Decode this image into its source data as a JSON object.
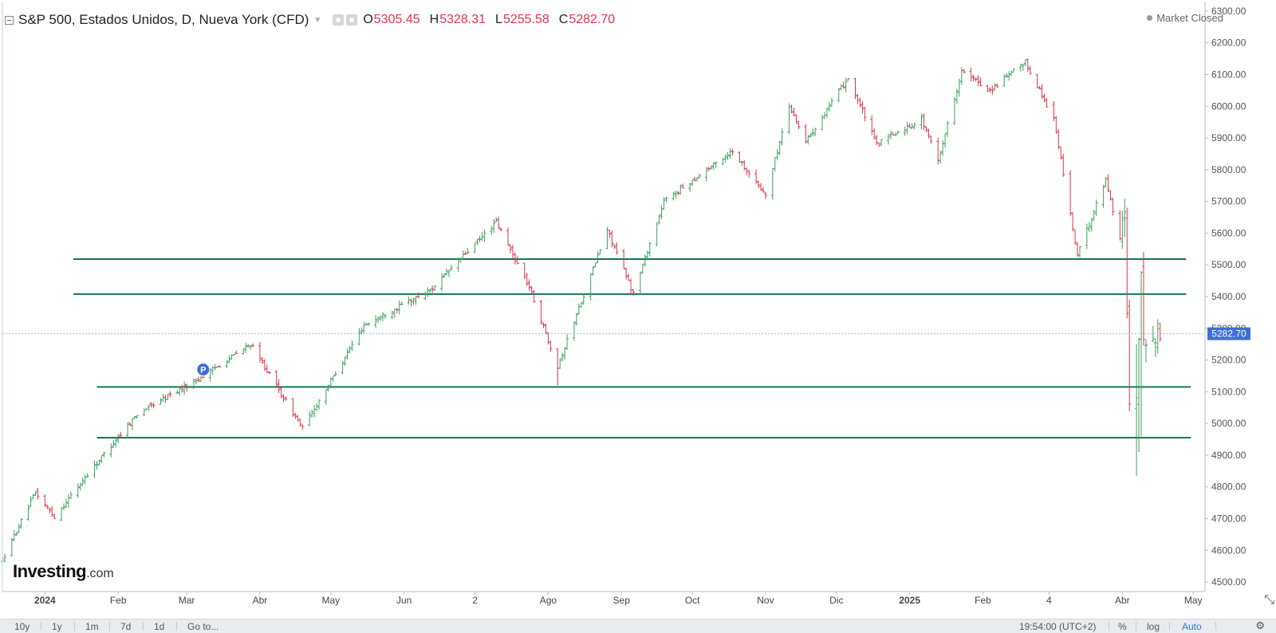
{
  "header": {
    "symbol": "S&P 500, Estados Unidos, D, Nueva York (CFD)",
    "open_label": "O",
    "open_value": "5305.45",
    "high_label": "H",
    "high_value": "5328.31",
    "low_label": "L",
    "low_value": "5255.58",
    "close_label": "C",
    "close_value": "5282.70",
    "market_status": "Market Closed"
  },
  "logo": {
    "name": "Investing",
    "suffix": ".com"
  },
  "current_price": {
    "label": "5282.70",
    "value": 5282.7
  },
  "colors": {
    "up": "#3aa05c",
    "down": "#e0344a",
    "support_line": "#0f7a55",
    "price_tag": "#3d6fd6",
    "crosshair": "#a4b6ee"
  },
  "marker": {
    "label": "P",
    "date": "2024-03-08",
    "value": 5170
  },
  "bottom_bar": {
    "ranges": [
      "10y",
      "1y",
      "1m",
      "7d",
      "1d"
    ],
    "goto": "Go to...",
    "time": "19:54:00 (UTC+2)",
    "percent": "%",
    "log": "log",
    "auto": "Auto"
  },
  "chart_data": {
    "type": "ohlc",
    "y_range": [
      4470,
      6330
    ],
    "x_range": [
      "2023-12-14",
      "2025-05-06"
    ],
    "y_tick_labels": [
      "4500.00",
      "4600.00",
      "4700.00",
      "4800.00",
      "4900.00",
      "5000.00",
      "5100.00",
      "5200.00",
      "5300.00",
      "5400.00",
      "5500.00",
      "5600.00",
      "5700.00",
      "5800.00",
      "5900.00",
      "6000.00",
      "6100.00",
      "6200.00",
      "6300.00"
    ],
    "x_ticks": [
      {
        "label": "2024",
        "date": "2024-01-01",
        "bold": true
      },
      {
        "label": "Feb",
        "date": "2024-02-01"
      },
      {
        "label": "Mar",
        "date": "2024-03-01"
      },
      {
        "label": "Abr",
        "date": "2024-04-01"
      },
      {
        "label": "May",
        "date": "2024-05-01"
      },
      {
        "label": "Jun",
        "date": "2024-06-01"
      },
      {
        "label": "2",
        "date": "2024-07-01"
      },
      {
        "label": "Ago",
        "date": "2024-08-01"
      },
      {
        "label": "Sep",
        "date": "2024-09-01"
      },
      {
        "label": "Oct",
        "date": "2024-10-01"
      },
      {
        "label": "Nov",
        "date": "2024-11-01"
      },
      {
        "label": "Dic",
        "date": "2024-12-01"
      },
      {
        "label": "2025",
        "date": "2025-01-01",
        "bold": true
      },
      {
        "label": "Feb",
        "date": "2025-02-01"
      },
      {
        "label": "4",
        "date": "2025-03-01"
      },
      {
        "label": "Abr",
        "date": "2025-04-01"
      },
      {
        "label": "May",
        "date": "2025-05-01"
      }
    ],
    "horizontal_lines": [
      {
        "start": "2024-01-13",
        "end": "2025-04-28",
        "y": 5518
      },
      {
        "start": "2024-01-13",
        "end": "2025-04-28",
        "y": 5408
      },
      {
        "start": "2024-01-23",
        "end": "2025-04-30",
        "y": 5115
      },
      {
        "start": "2024-01-23",
        "end": "2025-04-30",
        "y": 4955
      }
    ],
    "anchors": [
      [
        "2023-12-14",
        4570
      ],
      [
        "2023-12-28",
        4782
      ],
      [
        "2024-01-05",
        4705
      ],
      [
        "2024-01-19",
        4840
      ],
      [
        "2024-02-09",
        5030
      ],
      [
        "2024-03-08",
        5150
      ],
      [
        "2024-03-28",
        5250
      ],
      [
        "2024-04-19",
        4985
      ],
      [
        "2024-05-15",
        5310
      ],
      [
        "2024-06-12",
        5420
      ],
      [
        "2024-07-10",
        5635
      ],
      [
        "2024-07-24",
        5430
      ],
      [
        "2024-08-05",
        5180
      ],
      [
        "2024-08-26",
        5610
      ],
      [
        "2024-09-06",
        5410
      ],
      [
        "2024-09-19",
        5700
      ],
      [
        "2024-10-18",
        5860
      ],
      [
        "2024-11-01",
        5720
      ],
      [
        "2024-11-11",
        6000
      ],
      [
        "2024-11-18",
        5890
      ],
      [
        "2024-12-06",
        6090
      ],
      [
        "2024-12-18",
        5880
      ],
      [
        "2025-01-06",
        5960
      ],
      [
        "2025-01-13",
        5830
      ],
      [
        "2025-01-23",
        6110
      ],
      [
        "2025-02-04",
        6050
      ],
      [
        "2025-02-19",
        6140
      ],
      [
        "2025-03-03",
        5960
      ],
      [
        "2025-03-13",
        5530
      ],
      [
        "2025-03-25",
        5770
      ],
      [
        "2025-03-31",
        5580
      ],
      [
        "2025-04-02",
        5670
      ],
      [
        "2025-04-04",
        5070
      ],
      [
        "2025-04-07",
        5060
      ],
      [
        "2025-04-09",
        5460
      ],
      [
        "2025-04-10",
        5270
      ],
      [
        "2025-04-16",
        5280
      ],
      [
        "2025-04-17",
        5282
      ]
    ]
  }
}
